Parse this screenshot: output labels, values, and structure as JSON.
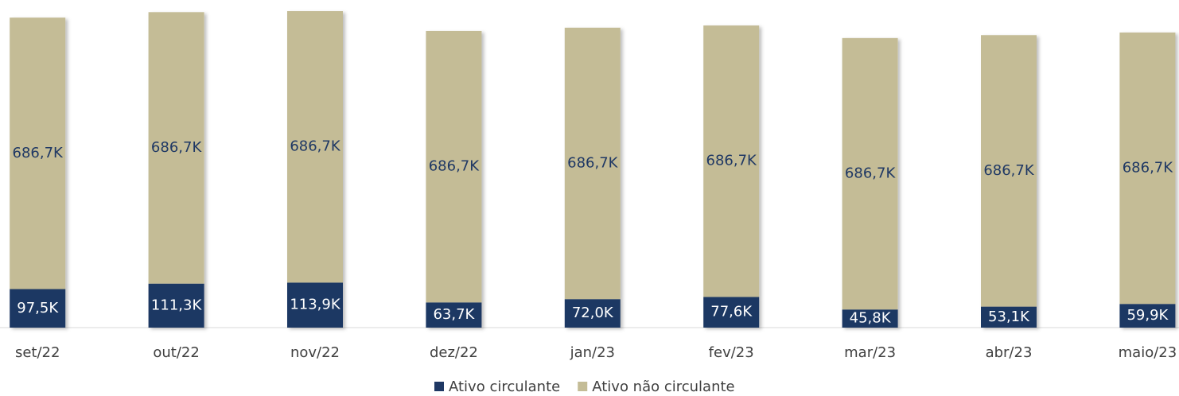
{
  "chart_data": {
    "type": "stacked_bar",
    "categories": [
      "set/22",
      "out/22",
      "nov/22",
      "dez/22",
      "jan/23",
      "fev/23",
      "mar/23",
      "abr/23",
      "maio/23"
    ],
    "series": [
      {
        "name": "Ativo circulante",
        "color": "#1f3864",
        "values": [
          97.5,
          111.3,
          113.9,
          63.7,
          72.0,
          77.6,
          45.8,
          53.1,
          59.9
        ],
        "value_labels": [
          "97,5K",
          "111,3K",
          "113,9K",
          "63,7K",
          "72,0K",
          "77,6K",
          "45,8K",
          "53,1K",
          "59,9K"
        ]
      },
      {
        "name": "Ativo não circulante",
        "color": "#c4bc96",
        "values": [
          686.7,
          686.7,
          686.7,
          686.7,
          686.7,
          686.7,
          686.7,
          686.7,
          686.7
        ],
        "value_labels": [
          "686,7K",
          "686,7K",
          "686,7K",
          "686,7K",
          "686,7K",
          "686,7K",
          "686,7K",
          "686,7K",
          "686,7K"
        ]
      }
    ],
    "legend": "bottom"
  }
}
